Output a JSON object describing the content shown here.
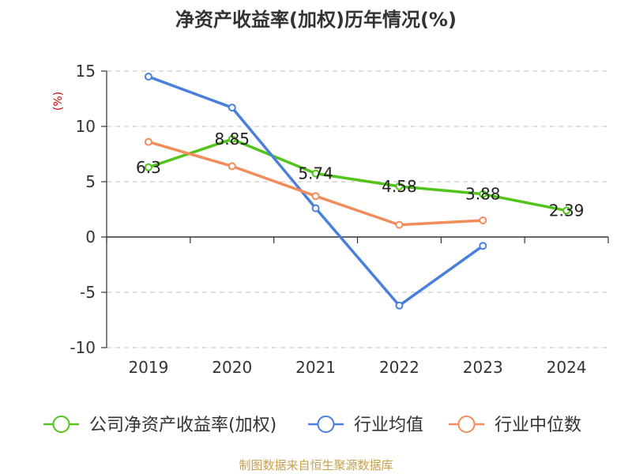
{
  "chart_data": {
    "type": "line",
    "title": "净资产收益率(加权)历年情况(%)",
    "ylabel": "(%)",
    "xlabel": "",
    "categories": [
      "2019",
      "2020",
      "2021",
      "2022",
      "2023",
      "2024"
    ],
    "ylim": [
      -10,
      15
    ],
    "yticks": [
      15,
      10,
      5,
      0,
      -5,
      -10
    ],
    "ytick_labels": [
      "15",
      "10",
      "5",
      "0",
      "-5",
      "-10"
    ],
    "grid": true,
    "legend_position": "bottom",
    "series": [
      {
        "name": "公司净资产收益率(加权)",
        "color": "#52c41a",
        "values": [
          6.3,
          8.85,
          5.74,
          4.58,
          3.88,
          2.39
        ],
        "labels": [
          "6.3",
          "8.85",
          "5.74",
          "4.58",
          "3.88",
          "2.39"
        ]
      },
      {
        "name": "行业均值",
        "color": "#4a7fdc",
        "values": [
          14.5,
          11.7,
          2.6,
          -6.2,
          -0.8,
          null
        ]
      },
      {
        "name": "行业中位数",
        "color": "#f28c5b",
        "values": [
          8.6,
          6.4,
          3.7,
          1.1,
          1.5,
          null
        ]
      }
    ],
    "source": "制图数据来自恒生聚源数据库"
  }
}
